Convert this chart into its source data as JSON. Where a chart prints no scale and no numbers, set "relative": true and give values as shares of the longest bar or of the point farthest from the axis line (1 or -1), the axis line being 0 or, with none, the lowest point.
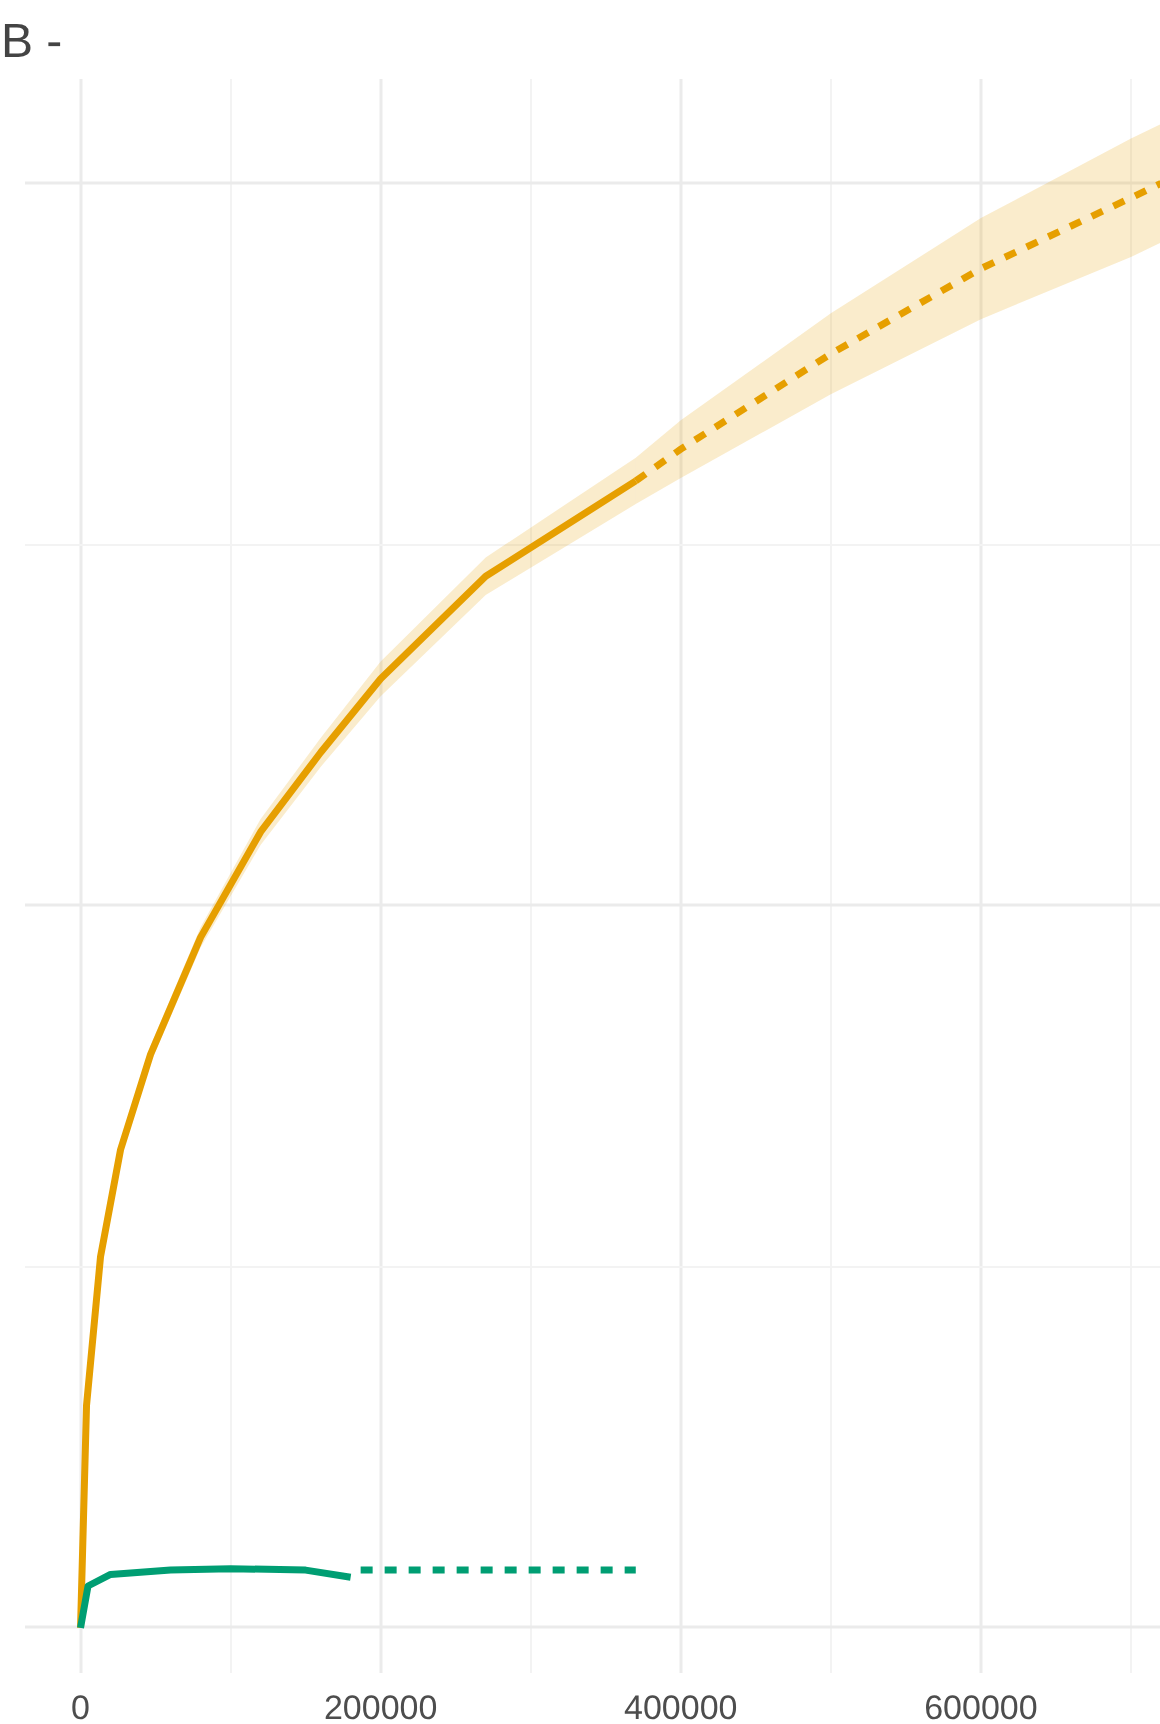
{
  "chart_data": {
    "type": "line",
    "title": "B -",
    "relative": true,
    "grid": true,
    "xlim": [
      -37000,
      720000
    ],
    "xticks": [
      0,
      200000,
      400000,
      600000
    ],
    "series": [
      {
        "color": "#e69f00",
        "line_style": "solid",
        "x": [
          0,
          4000,
          13333,
          26667,
          46667,
          80000,
          120000,
          160000,
          200000,
          270000,
          370000
        ],
        "values": [
          0,
          0.154,
          0.257,
          0.331,
          0.397,
          0.478,
          0.551,
          0.606,
          0.657,
          0.728,
          0.794
        ],
        "lower": [
          0,
          0.153,
          0.254,
          0.327,
          0.391,
          0.471,
          0.542,
          0.596,
          0.645,
          0.715,
          0.778
        ],
        "upper": [
          0,
          0.155,
          0.26,
          0.335,
          0.403,
          0.485,
          0.56,
          0.616,
          0.669,
          0.741,
          0.81
        ]
      },
      {
        "color": "#e69f00",
        "line_style": "dashed",
        "x": [
          370000,
          400000,
          500000,
          600000,
          700000,
          720000
        ],
        "values": [
          0.794,
          0.816,
          0.882,
          0.941,
          0.99,
          1.0
        ],
        "lower": [
          0.778,
          0.796,
          0.854,
          0.906,
          0.949,
          0.959
        ],
        "upper": [
          0.81,
          0.836,
          0.91,
          0.976,
          1.031,
          1.041
        ]
      },
      {
        "color": "#009e73",
        "line_style": "solid",
        "x": [
          0,
          5000,
          20000,
          60000,
          100000,
          150000,
          180000
        ],
        "values": [
          0,
          0.029,
          0.037,
          0.04,
          0.041,
          0.04,
          0.035
        ]
      },
      {
        "color": "#009e73",
        "line_style": "dashed",
        "x": [
          186667,
          250000,
          300000,
          370000
        ],
        "values": [
          0.04,
          0.04,
          0.04,
          0.04
        ]
      }
    ]
  }
}
